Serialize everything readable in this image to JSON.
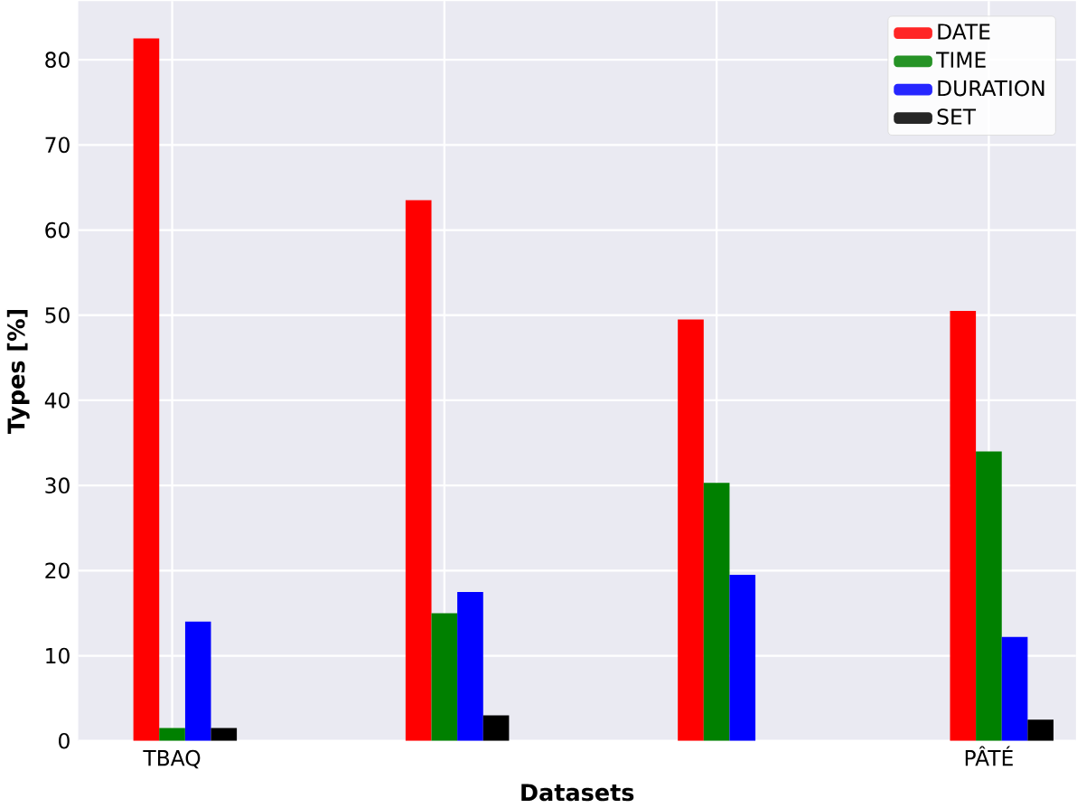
{
  "chart_data": {
    "type": "bar",
    "xlabel": "Datasets",
    "ylabel": "Types [%]",
    "categories": [
      "TBAQ",
      null,
      null,
      "PÂTÉ"
    ],
    "series": [
      {
        "name": "DATE",
        "color": "#ff0000",
        "values": [
          82.5,
          63.5,
          49.5,
          50.5
        ]
      },
      {
        "name": "TIME",
        "color": "#008000",
        "values": [
          1.5,
          15,
          30.3,
          34
        ]
      },
      {
        "name": "DURATION",
        "color": "#0000ff",
        "values": [
          14,
          17.5,
          19.5,
          12.2
        ]
      },
      {
        "name": "SET",
        "color": "#000000",
        "values": [
          1.5,
          3,
          0,
          2.5
        ]
      }
    ],
    "ylim": [
      0,
      86.9
    ],
    "yticks": [
      0,
      10,
      20,
      30,
      40,
      50,
      60,
      70,
      80
    ],
    "grid": true,
    "legend": "top right"
  }
}
